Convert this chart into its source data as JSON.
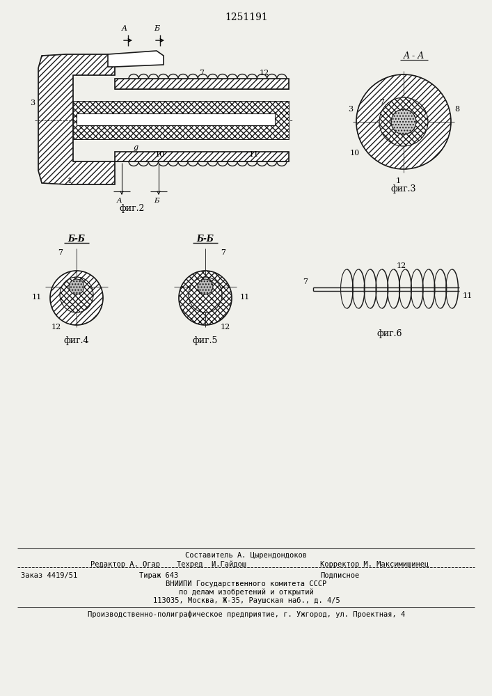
{
  "patent_number": "1251191",
  "fig2_label": "фиг.2",
  "fig3_label": "фиг.3",
  "fig4_label": "фиг.4",
  "fig5_label": "фиг.5",
  "fig6_label": "фиг.6",
  "section_AA": "A - A",
  "section_BB": "Б-Б",
  "arrow_A": "A",
  "arrow_B": "Б",
  "text_line1": "Составитель А. Цырендондоков",
  "text_line2a": "Редактор А. Огар",
  "text_line2b": "Техред  И.Гайдош",
  "text_line2c": "Корректор М. Максимишинец",
  "text_line3a": "Заказ 4419/51",
  "text_line3b": "Тираж 643",
  "text_line3c": "Подписное",
  "text_line4": "ВНИИПИ Государственного комитета СССР",
  "text_line5": "по делам изобретений и открытий",
  "text_line6": "113035, Москва, Ж-35, Раушская наб., д. 4/5",
  "text_line7": "Производственно-полиграфическое предприятие, г. Ужгород, ул. Проектная, 4",
  "bg_color": "#f0f0eb",
  "line_color": "#000000"
}
